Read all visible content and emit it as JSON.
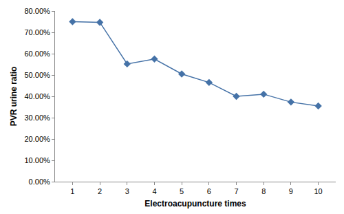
{
  "chart_data": {
    "type": "line",
    "xlabel": "Electroacupuncture times",
    "ylabel": "PVR urine ratio",
    "categories": [
      "1",
      "2",
      "3",
      "4",
      "5",
      "6",
      "7",
      "8",
      "9",
      "10"
    ],
    "values": [
      75.0,
      74.7,
      55.2,
      57.5,
      50.5,
      46.5,
      40.0,
      41.0,
      37.3,
      35.5
    ],
    "color": "#4572a7",
    "marker": "diamond",
    "ylim": [
      0,
      80
    ],
    "yticks": [
      {
        "value": 0,
        "label": "0.00%"
      },
      {
        "value": 10,
        "label": "10.00%"
      },
      {
        "value": 20,
        "label": "20.00%"
      },
      {
        "value": 30,
        "label": "30.00%"
      },
      {
        "value": 40,
        "label": "40.00%"
      },
      {
        "value": 50,
        "label": "50.00%"
      },
      {
        "value": 60,
        "label": "60.00%"
      },
      {
        "value": 70,
        "label": "70.00%"
      },
      {
        "value": 80,
        "label": "80.00%"
      }
    ],
    "grid": false
  }
}
